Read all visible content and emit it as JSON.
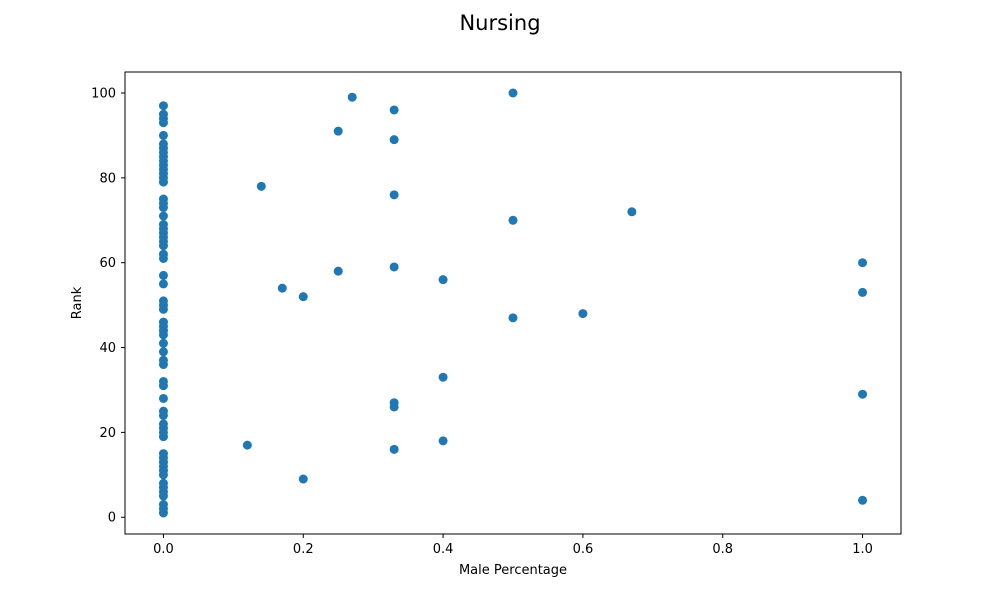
{
  "chart_data": {
    "type": "scatter",
    "title": "Nursing",
    "xlabel": "Male Percentage",
    "ylabel": "Rank",
    "xlim": [
      -0.055,
      1.055
    ],
    "ylim": [
      -3.95,
      104.95
    ],
    "xticks": [
      0.0,
      0.2,
      0.4,
      0.6,
      0.8,
      1.0
    ],
    "xtick_labels": [
      "0.0",
      "0.2",
      "0.4",
      "0.6",
      "0.8",
      "1.0"
    ],
    "yticks": [
      0,
      20,
      40,
      60,
      80,
      100
    ],
    "ytick_labels": [
      "0",
      "20",
      "40",
      "60",
      "80",
      "100"
    ],
    "grid": false,
    "marker_color": "#1f77b4",
    "points": [
      [
        0,
        1
      ],
      [
        0,
        2
      ],
      [
        0,
        3
      ],
      [
        0,
        5
      ],
      [
        0,
        6
      ],
      [
        0,
        7
      ],
      [
        0,
        8
      ],
      [
        0,
        10
      ],
      [
        0,
        11
      ],
      [
        0,
        12
      ],
      [
        0,
        13
      ],
      [
        0,
        14
      ],
      [
        0,
        15
      ],
      [
        0,
        19
      ],
      [
        0,
        20
      ],
      [
        0,
        21
      ],
      [
        0,
        22
      ],
      [
        0,
        24
      ],
      [
        0,
        25
      ],
      [
        0,
        28
      ],
      [
        0,
        31
      ],
      [
        0,
        32
      ],
      [
        0,
        36
      ],
      [
        0,
        37
      ],
      [
        0,
        39
      ],
      [
        0,
        41
      ],
      [
        0,
        43
      ],
      [
        0,
        44
      ],
      [
        0,
        45
      ],
      [
        0,
        46
      ],
      [
        0,
        49
      ],
      [
        0,
        50
      ],
      [
        0,
        51
      ],
      [
        0,
        55
      ],
      [
        0,
        57
      ],
      [
        0,
        61
      ],
      [
        0,
        62
      ],
      [
        0,
        64
      ],
      [
        0,
        65
      ],
      [
        0,
        66
      ],
      [
        0,
        67
      ],
      [
        0,
        68
      ],
      [
        0,
        69
      ],
      [
        0,
        71
      ],
      [
        0,
        73
      ],
      [
        0,
        74
      ],
      [
        0,
        75
      ],
      [
        0,
        79
      ],
      [
        0,
        80
      ],
      [
        0,
        81
      ],
      [
        0,
        82
      ],
      [
        0,
        83
      ],
      [
        0,
        84
      ],
      [
        0,
        85
      ],
      [
        0,
        86
      ],
      [
        0,
        87
      ],
      [
        0,
        88
      ],
      [
        0,
        90
      ],
      [
        0,
        93
      ],
      [
        0,
        94
      ],
      [
        0,
        95
      ],
      [
        0,
        97
      ],
      [
        0.27,
        99
      ],
      [
        0.33,
        96
      ],
      [
        0.5,
        100
      ],
      [
        0.25,
        91
      ],
      [
        0.33,
        89
      ],
      [
        0.14,
        78
      ],
      [
        0.33,
        76
      ],
      [
        0.5,
        70
      ],
      [
        0.67,
        72
      ],
      [
        0.25,
        58
      ],
      [
        0.33,
        59
      ],
      [
        0.4,
        56
      ],
      [
        0.17,
        54
      ],
      [
        0.2,
        52
      ],
      [
        0.5,
        47
      ],
      [
        0.6,
        48
      ],
      [
        0.4,
        33
      ],
      [
        0.33,
        27
      ],
      [
        0.33,
        26
      ],
      [
        0.4,
        18
      ],
      [
        0.12,
        17
      ],
      [
        0.33,
        16
      ],
      [
        0.2,
        9
      ],
      [
        1.0,
        60
      ],
      [
        1.0,
        53
      ],
      [
        1.0,
        29
      ],
      [
        1.0,
        4
      ]
    ]
  }
}
